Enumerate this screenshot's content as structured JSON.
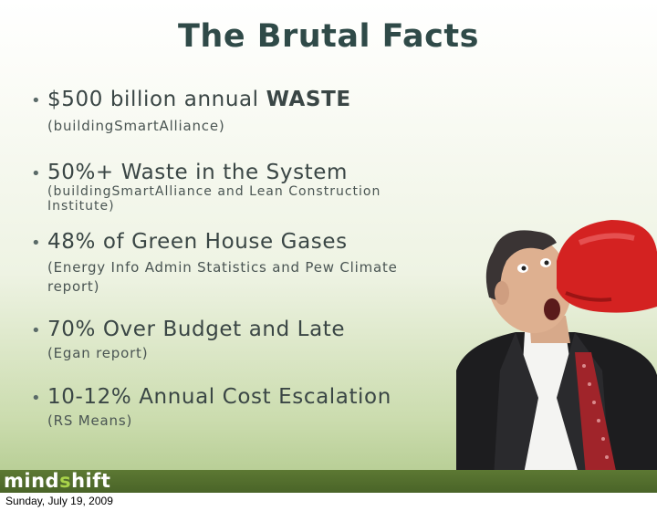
{
  "slide": {
    "title": "The Brutal Facts",
    "bullets": [
      {
        "main_prefix": "$500 billion annual ",
        "main_strong": "WASTE",
        "sub": "(buildingSmartAlliance)"
      },
      {
        "main_prefix": "50%+ Waste in the System",
        "main_strong": "",
        "sub": "(buildingSmartAlliance and Lean Construction Institute)"
      },
      {
        "main_prefix": "48% of Green House Gases",
        "main_strong": "",
        "sub": "(Energy Info Admin Statistics and Pew Climate report)"
      },
      {
        "main_prefix": "70% Over Budget and Late",
        "main_strong": "",
        "sub": "(Egan report)"
      },
      {
        "main_prefix": "10-12% Annual Cost Escalation",
        "main_strong": "",
        "sub": "(RS Means)"
      }
    ],
    "bullet_glyph": "•"
  },
  "footer": {
    "logo_part1": "mind",
    "logo_part2": "s",
    "logo_part3": "hift",
    "date": "Sunday, July 19, 2009"
  },
  "colors": {
    "title": "#2f4a48",
    "footer_band": "#4a6428",
    "logo_accent": "#a9d34a"
  },
  "image": {
    "icon": "boxer-punch-photo"
  }
}
